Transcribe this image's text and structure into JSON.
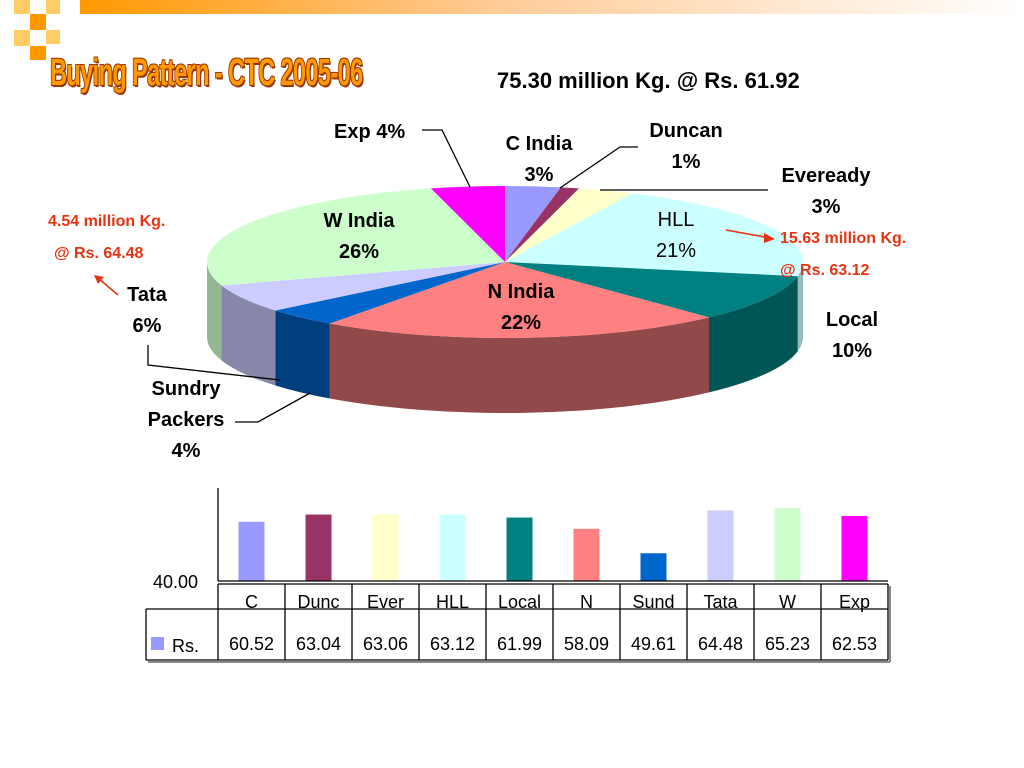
{
  "title": "Buying Pattern - CTC 2005-06",
  "subtitle": "75.30 million Kg. @ Rs. 61.92",
  "notes": {
    "tata_qty": "4.54 million Kg.",
    "tata_rate": "@ Rs. 64.48",
    "hll_qty": "15.63 million Kg.",
    "hll_rate": "@ Rs. 63.12"
  },
  "pie_labels": {
    "exp": "Exp 4%",
    "c_india": [
      "C India",
      "3%"
    ],
    "duncan": [
      "Duncan",
      "1%"
    ],
    "eveready": [
      "Eveready",
      "3%"
    ],
    "hll": [
      "HLL",
      "21%"
    ],
    "w_india": [
      "W India",
      "26%"
    ],
    "n_india": [
      "N India",
      "22%"
    ],
    "local": [
      "Local",
      "10%"
    ],
    "tata": [
      "Tata",
      "6%"
    ],
    "sundry": [
      "Sundry",
      "Packers",
      "4%"
    ]
  },
  "chart_data": [
    {
      "type": "pie",
      "title": "Buying Pattern - CTC 2005-06",
      "subtitle": "75.30 million Kg. @ Rs. 61.92",
      "slices": [
        {
          "label": "C India",
          "value": 3,
          "color": "#9999ff"
        },
        {
          "label": "Duncan",
          "value": 1,
          "color": "#993366"
        },
        {
          "label": "Eveready",
          "value": 3,
          "color": "#ffffcc"
        },
        {
          "label": "HLL",
          "value": 21,
          "color": "#ccffff"
        },
        {
          "label": "Local",
          "value": 10,
          "color": "#008080"
        },
        {
          "label": "N India",
          "value": 22,
          "color": "#ff8080"
        },
        {
          "label": "Sundry Packers",
          "value": 4,
          "color": "#0066cc"
        },
        {
          "label": "Tata",
          "value": 6,
          "color": "#ccccff"
        },
        {
          "label": "W India",
          "value": 26,
          "color": "#ccffcc"
        },
        {
          "label": "Exp",
          "value": 4,
          "color": "#ff00ff"
        }
      ]
    },
    {
      "type": "bar",
      "categories": [
        "C",
        "Dunc",
        "Ever",
        "HLL",
        "Local",
        "N",
        "Sund",
        "Tata",
        "W",
        "Exp"
      ],
      "series": [
        {
          "name": "Rs.",
          "values": [
            60.52,
            63.04,
            63.06,
            63.12,
            61.99,
            58.09,
            49.61,
            64.48,
            65.23,
            62.53
          ]
        }
      ],
      "colors": [
        "#9999ff",
        "#993366",
        "#ffffcc",
        "#ccffff",
        "#008080",
        "#ff8080",
        "#0066cc",
        "#ccccff",
        "#ccffcc",
        "#ff00ff"
      ],
      "y_tick_labels": [
        "40.00"
      ],
      "y_tick_values": [
        40
      ],
      "ylim": [
        40,
        66
      ],
      "legend_color": "#9999ff",
      "value_labels": [
        "60.52",
        "63.04",
        "63.06",
        "63.12",
        "61.99",
        "58.09",
        "49.61",
        "64.48",
        "65.23",
        "62.53"
      ]
    }
  ]
}
